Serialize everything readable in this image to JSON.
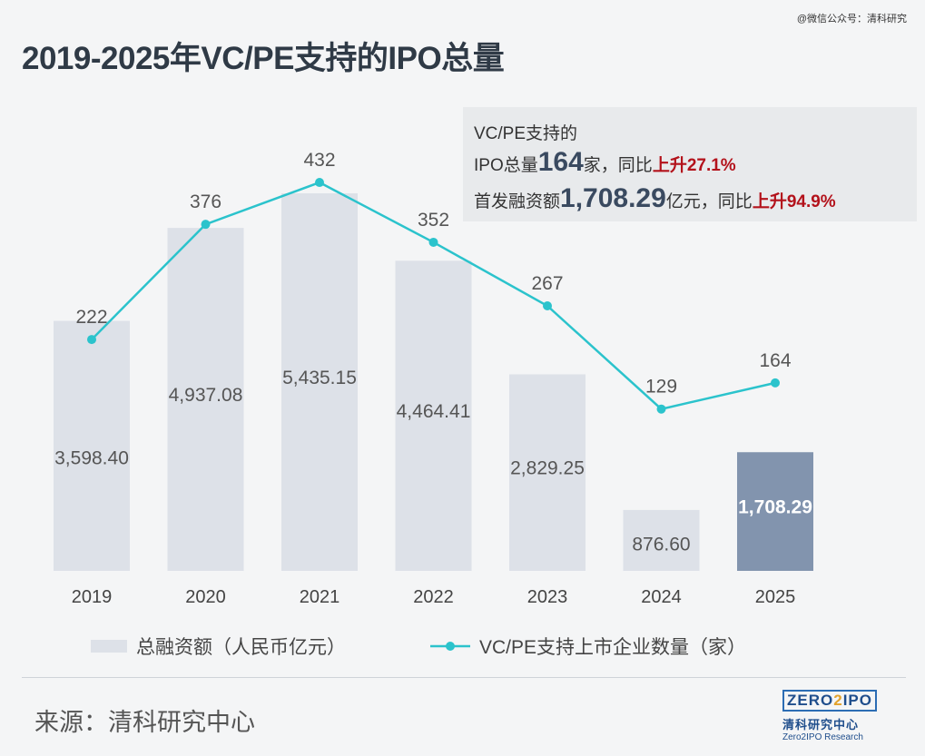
{
  "watermark": "@微信公众号：清科研究",
  "title": "2019-2025年VC/PE支持的IPO总量",
  "infobox": {
    "line1": "VC/PE支持的",
    "line2_prefix": "IPO总量",
    "line2_count": "164",
    "line2_mid": "家，同比",
    "line2_change": "上升27.1%",
    "line3_prefix": "首发融资额",
    "line3_amount": "1,708.29",
    "line3_mid": "亿元，同比",
    "line3_change": "上升94.9%"
  },
  "source": "来源：清科研究中心",
  "logo": {
    "box_left": "ZERO",
    "box_two": "2",
    "box_right": "IPO",
    "cn": "清科研究中心",
    "en": "Zero2IPO Research"
  },
  "colors": {
    "bar": "#dde1e8",
    "bar_highlight": "#8294ae",
    "line": "#2bc3cc",
    "bg": "#f4f5f6"
  },
  "chart_data": {
    "type": "bar+line",
    "title": "2019-2025年VC/PE支持的IPO总量",
    "categories": [
      "2019",
      "2020",
      "2021",
      "2022",
      "2023",
      "2024",
      "2025"
    ],
    "series": [
      {
        "name": "总融资额（人民币亿元）",
        "type": "bar",
        "values": [
          3598.4,
          4937.08,
          5435.15,
          4464.41,
          2829.25,
          876.6,
          1708.29
        ],
        "labels": [
          "3,598.40",
          "4,937.08",
          "5,435.15",
          "4,464.41",
          "2,829.25",
          "876.60",
          "1,708.29"
        ],
        "highlight_index": 6
      },
      {
        "name": "VC/PE支持上市企业数量（家）",
        "type": "line",
        "values": [
          222,
          376,
          432,
          352,
          267,
          129,
          164
        ],
        "labels": [
          "222",
          "376",
          "432",
          "352",
          "267",
          "129",
          "164"
        ]
      }
    ],
    "bar_axis_range": [
      0,
      5800
    ],
    "line_axis_range": [
      0,
      650
    ],
    "legend_position": "bottom",
    "grid": false
  }
}
